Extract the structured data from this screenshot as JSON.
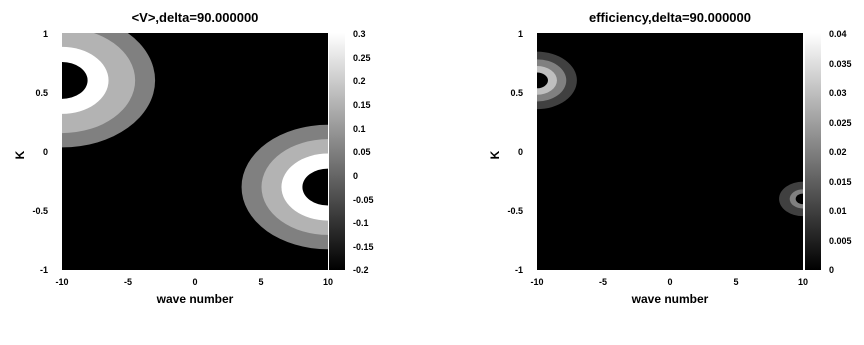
{
  "chart_data": [
    {
      "type": "heatmap",
      "title": "<V>,delta=90.000000",
      "xlabel": "wave number",
      "ylabel": "K",
      "xlim": [
        -10,
        10
      ],
      "ylim": [
        -1,
        1
      ],
      "x_ticks": [
        "-10",
        "-5",
        "0",
        "5",
        "10"
      ],
      "y_ticks": [
        "1",
        "0.5",
        "0",
        "-0.5",
        "-1"
      ],
      "colorbar": {
        "range": [
          -0.2,
          0.3
        ],
        "ticks": [
          "0.3",
          "0.25",
          "0.2",
          "0.15",
          "0.1",
          "0.05",
          "0",
          "-0.05",
          "-0.1",
          "-0.15",
          "-0.2"
        ]
      },
      "features": [
        {
          "center": [
            -10,
            0.6
          ],
          "radii": [
            3.5,
            5.5,
            7.0
          ],
          "values": [
            0.3,
            0.15,
            0.05
          ],
          "background": -0.2
        },
        {
          "center": [
            10,
            -0.3
          ],
          "radii": [
            3.5,
            5.0,
            6.5
          ],
          "values": [
            0.3,
            0.15,
            0.05
          ]
        }
      ]
    },
    {
      "type": "heatmap",
      "title": "efficiency,delta=90.000000",
      "xlabel": "wave number",
      "ylabel": "K",
      "xlim": [
        -10,
        10
      ],
      "ylim": [
        -1,
        1
      ],
      "x_ticks": [
        "-10",
        "-5",
        "0",
        "5",
        "10"
      ],
      "y_ticks": [
        "1",
        "0.5",
        "0",
        "-0.5",
        "-1"
      ],
      "colorbar": {
        "range": [
          0,
          0.04
        ],
        "ticks": [
          "0.04",
          "0.035",
          "0.03",
          "0.025",
          "0.02",
          "0.015",
          "0.01",
          "0.005",
          "0"
        ]
      },
      "features": [
        {
          "center": [
            -10,
            0.6
          ],
          "radii": [
            1.5,
            2.2,
            3.0
          ],
          "values": [
            0.03,
            0.02,
            0.01
          ],
          "background": 0
        },
        {
          "center": [
            10,
            -0.4
          ],
          "radii": [
            1.0,
            1.8
          ],
          "values": [
            0.02,
            0.01
          ]
        }
      ]
    }
  ]
}
